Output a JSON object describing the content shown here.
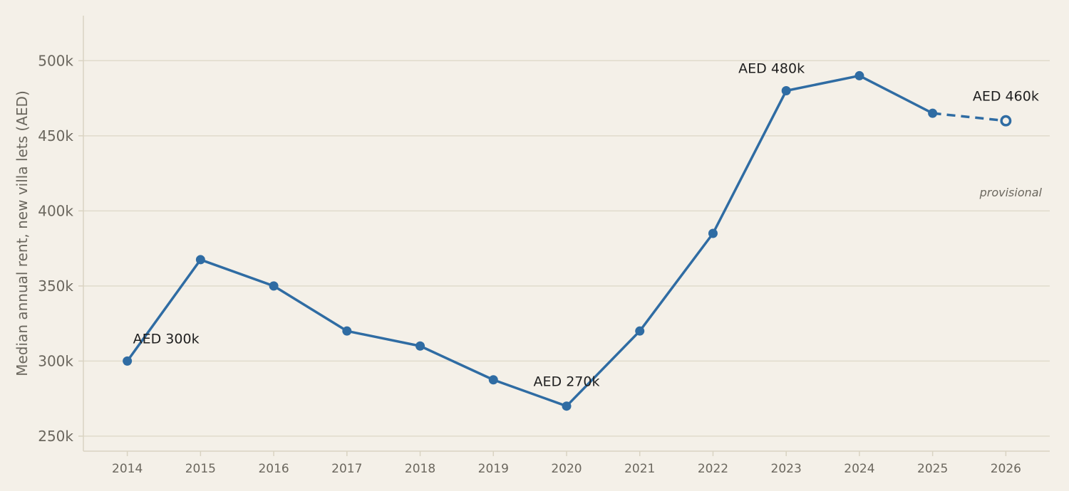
{
  "chart_data": {
    "type": "line",
    "title": "",
    "xlabel": "",
    "ylabel": "Median annual rent, new villa lets (AED)",
    "x": [
      2014,
      2015,
      2016,
      2017,
      2018,
      2019,
      2020,
      2021,
      2022,
      2023,
      2024,
      2025,
      2026
    ],
    "x_tick_labels": [
      "2014",
      "2015",
      "2016",
      "2017",
      "2018",
      "2019",
      "2020",
      "2021",
      "2022",
      "2023",
      "2024",
      "2025",
      "2026"
    ],
    "series": [
      {
        "values": [
          300000,
          367500,
          350000,
          320000,
          310000,
          287500,
          270000,
          320000,
          385000,
          480000,
          490000,
          465000,
          460000
        ],
        "color": "#2f6ca3",
        "provisional_from_index": 11,
        "provisional_indices": [
          12
        ]
      }
    ],
    "ylim": [
      240000,
      530000
    ],
    "xlim": [
      2013.4,
      2026.6
    ],
    "y_ticks": [
      250000,
      300000,
      350000,
      400000,
      450000,
      500000
    ],
    "y_tick_labels": [
      "250k",
      "300k",
      "350k",
      "400k",
      "450k",
      "500k"
    ],
    "grid": "horizontal",
    "annotations": [
      {
        "x": 2014,
        "y": 300000,
        "text": "AED 300k",
        "position": "upper-right"
      },
      {
        "x": 2020,
        "y": 270000,
        "text": "AED 270k",
        "position": "above"
      },
      {
        "x": 2023,
        "y": 480000,
        "text": "AED 480k",
        "position": "upper-left"
      },
      {
        "x": 2026,
        "y": 460000,
        "text": "AED 460k",
        "position": "above"
      }
    ],
    "notes": [
      {
        "text": "provisional",
        "near_x": 2026
      }
    ]
  },
  "colors": {
    "background": "#f4f0e8",
    "grid": "#e0dbcc",
    "axis": "#d9d3c2",
    "line": "#2f6ca3",
    "tick_text": "#6b675e",
    "annotation_text": "#1f1f1f"
  }
}
